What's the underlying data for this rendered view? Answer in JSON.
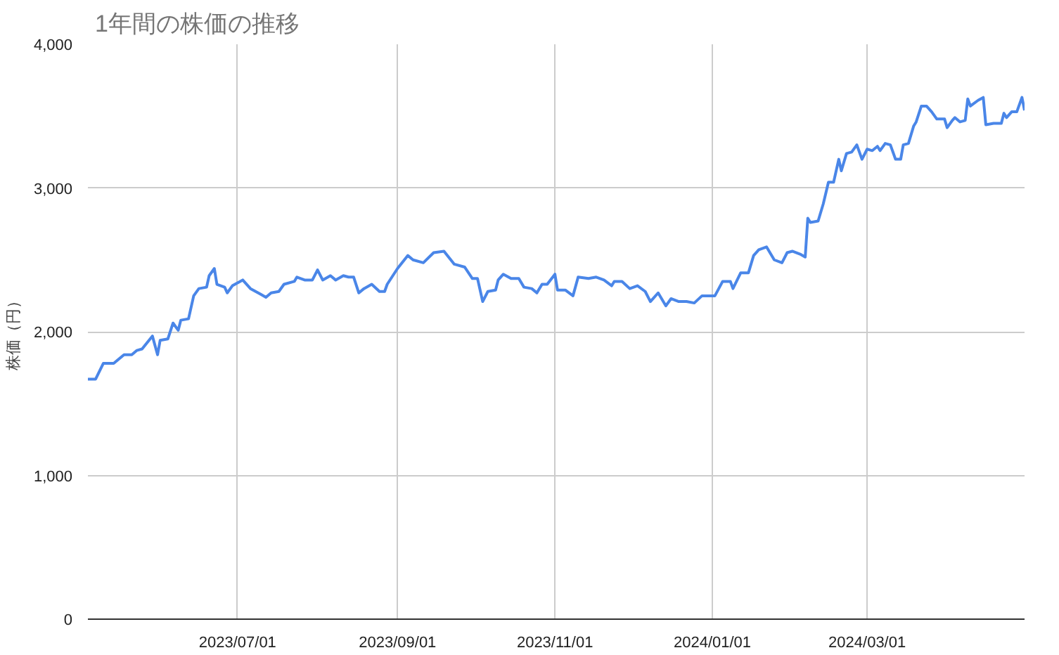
{
  "chart_data": {
    "type": "line",
    "title": "1年間の株価の推移",
    "ylabel": "株価（円）",
    "xlim": [
      "2023-05-04",
      "2024-05-01"
    ],
    "xticks": [
      {
        "value": "2023-07-01",
        "label": "2023/07/01"
      },
      {
        "value": "2023-09-01",
        "label": "2023/09/01"
      },
      {
        "value": "2023-11-01",
        "label": "2023/11/01"
      },
      {
        "value": "2024-01-01",
        "label": "2024/01/01"
      },
      {
        "value": "2024-03-01",
        "label": "2024/03/01"
      }
    ],
    "ylim": [
      0,
      4000
    ],
    "yticks": [
      0,
      {
        "value": 1000,
        "label": "1,000"
      },
      {
        "value": 2000,
        "label": "2,000"
      },
      {
        "value": 3000,
        "label": "3,000"
      },
      {
        "value": 4000,
        "label": "4,000"
      }
    ],
    "grid": true,
    "marker": "none",
    "line_style": "solid",
    "series": [
      {
        "color": "#4a86e8",
        "x": [
          "2023-05-04",
          "2023-05-07",
          "2023-05-10",
          "2023-05-14",
          "2023-05-18",
          "2023-05-21",
          "2023-05-23",
          "2023-05-25",
          "2023-05-29",
          "2023-05-31",
          "2023-06-01",
          "2023-06-04",
          "2023-06-06",
          "2023-06-08",
          "2023-06-09",
          "2023-06-12",
          "2023-06-14",
          "2023-06-16",
          "2023-06-19",
          "2023-06-20",
          "2023-06-22",
          "2023-06-23",
          "2023-06-26",
          "2023-06-27",
          "2023-06-29",
          "2023-07-03",
          "2023-07-06",
          "2023-07-10",
          "2023-07-12",
          "2023-07-14",
          "2023-07-17",
          "2023-07-19",
          "2023-07-23",
          "2023-07-24",
          "2023-07-27",
          "2023-07-30",
          "2023-08-01",
          "2023-08-03",
          "2023-08-06",
          "2023-08-08",
          "2023-08-11",
          "2023-08-13",
          "2023-08-15",
          "2023-08-17",
          "2023-08-19",
          "2023-08-22",
          "2023-08-25",
          "2023-08-27",
          "2023-08-28",
          "2023-09-01",
          "2023-09-05",
          "2023-09-07",
          "2023-09-11",
          "2023-09-15",
          "2023-09-19",
          "2023-09-23",
          "2023-09-27",
          "2023-09-30",
          "2023-10-02",
          "2023-10-04",
          "2023-10-06",
          "2023-10-09",
          "2023-10-10",
          "2023-10-12",
          "2023-10-15",
          "2023-10-18",
          "2023-10-20",
          "2023-10-23",
          "2023-10-25",
          "2023-10-27",
          "2023-10-29",
          "2023-11-01",
          "2023-11-02",
          "2023-11-05",
          "2023-11-08",
          "2023-11-10",
          "2023-11-14",
          "2023-11-17",
          "2023-11-20",
          "2023-11-23",
          "2023-11-24",
          "2023-11-27",
          "2023-11-30",
          "2023-12-03",
          "2023-12-06",
          "2023-12-08",
          "2023-12-11",
          "2023-12-14",
          "2023-12-16",
          "2023-12-19",
          "2023-12-22",
          "2023-12-25",
          "2023-12-28",
          "2024-01-02",
          "2024-01-05",
          "2024-01-08",
          "2024-01-09",
          "2024-01-12",
          "2024-01-15",
          "2024-01-17",
          "2024-01-19",
          "2024-01-22",
          "2024-01-25",
          "2024-01-28",
          "2024-01-30",
          "2024-02-01",
          "2024-02-04",
          "2024-02-06",
          "2024-02-07",
          "2024-02-08",
          "2024-02-11",
          "2024-02-13",
          "2024-02-15",
          "2024-02-17",
          "2024-02-19",
          "2024-02-20",
          "2024-02-22",
          "2024-02-24",
          "2024-02-26",
          "2024-02-28",
          "2024-03-01",
          "2024-03-03",
          "2024-03-05",
          "2024-03-06",
          "2024-03-08",
          "2024-03-10",
          "2024-03-12",
          "2024-03-14",
          "2024-03-15",
          "2024-03-17",
          "2024-03-19",
          "2024-03-20",
          "2024-03-22",
          "2024-03-24",
          "2024-03-26",
          "2024-03-28",
          "2024-03-31",
          "2024-04-01",
          "2024-04-03",
          "2024-04-04",
          "2024-04-06",
          "2024-04-08",
          "2024-04-09",
          "2024-04-10",
          "2024-04-13",
          "2024-04-15",
          "2024-04-16",
          "2024-04-19",
          "2024-04-22",
          "2024-04-23",
          "2024-04-24",
          "2024-04-26",
          "2024-04-28",
          "2024-04-30",
          "2024-05-01"
        ],
        "values": [
          1670,
          1670,
          1780,
          1780,
          1840,
          1840,
          1870,
          1880,
          1970,
          1840,
          1940,
          1950,
          2060,
          2010,
          2080,
          2090,
          2250,
          2300,
          2310,
          2390,
          2440,
          2330,
          2310,
          2270,
          2320,
          2360,
          2300,
          2260,
          2240,
          2270,
          2280,
          2330,
          2350,
          2380,
          2360,
          2360,
          2430,
          2360,
          2390,
          2360,
          2390,
          2380,
          2380,
          2270,
          2300,
          2330,
          2280,
          2280,
          2330,
          2440,
          2530,
          2500,
          2480,
          2550,
          2560,
          2470,
          2450,
          2370,
          2370,
          2210,
          2280,
          2290,
          2360,
          2400,
          2370,
          2370,
          2310,
          2300,
          2270,
          2330,
          2330,
          2400,
          2290,
          2290,
          2250,
          2380,
          2370,
          2380,
          2360,
          2320,
          2350,
          2350,
          2300,
          2320,
          2280,
          2210,
          2270,
          2180,
          2230,
          2210,
          2210,
          2200,
          2250,
          2250,
          2350,
          2350,
          2300,
          2410,
          2410,
          2530,
          2570,
          2590,
          2500,
          2480,
          2550,
          2560,
          2540,
          2520,
          2790,
          2760,
          2770,
          2890,
          3040,
          3040,
          3200,
          3120,
          3240,
          3250,
          3300,
          3200,
          3270,
          3260,
          3290,
          3260,
          3310,
          3300,
          3200,
          3200,
          3300,
          3310,
          3430,
          3460,
          3570,
          3570,
          3530,
          3480,
          3480,
          3420,
          3470,
          3490,
          3460,
          3470,
          3620,
          3570,
          3610,
          3630,
          3440,
          3450,
          3450,
          3520,
          3490,
          3530,
          3530,
          3630,
          3540
        ]
      }
    ]
  }
}
